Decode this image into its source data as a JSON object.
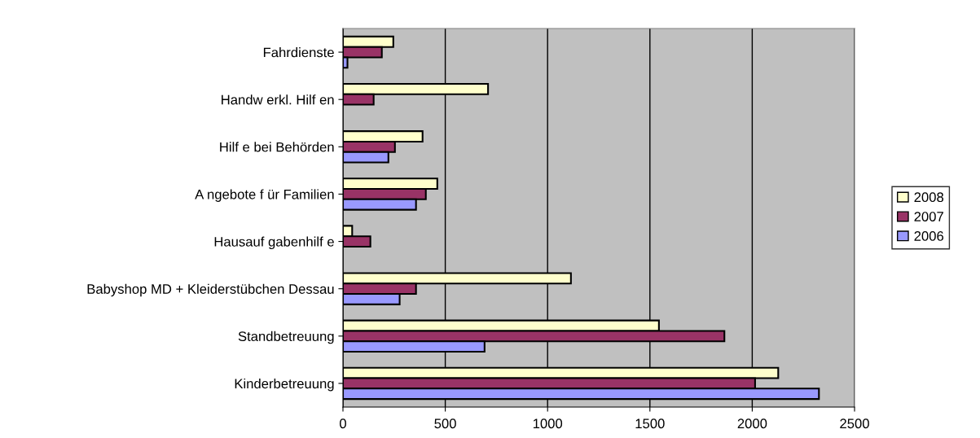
{
  "chart_data": {
    "type": "bar",
    "orientation": "horizontal",
    "categories": [
      "Fahrdienste",
      "Handw erkl. Hilf en",
      "Hilf e bei Behörden",
      "A ngebote f ür Familien",
      "Hausauf gabenhilf e",
      "Babyshop MD + Kleiderstübchen Dessau",
      "Standbetreuung",
      "Kinderbetreuung"
    ],
    "series": [
      {
        "name": "2008",
        "color": "#ffffcc",
        "values": [
          246,
          709,
          389,
          461,
          45,
          1114,
          1544,
          2127
        ]
      },
      {
        "name": "2007",
        "color": "#993366",
        "values": [
          190,
          150,
          254,
          405,
          134,
          357,
          1864,
          2014
        ]
      },
      {
        "name": "2006",
        "color": "#9999ff",
        "values": [
          22,
          null,
          222,
          357,
          null,
          277,
          692,
          2326
        ]
      }
    ],
    "xlim": [
      0,
      2500
    ],
    "xticks": [
      0,
      500,
      1000,
      1500,
      2000,
      2500
    ],
    "grid": "x",
    "legend": "right"
  }
}
